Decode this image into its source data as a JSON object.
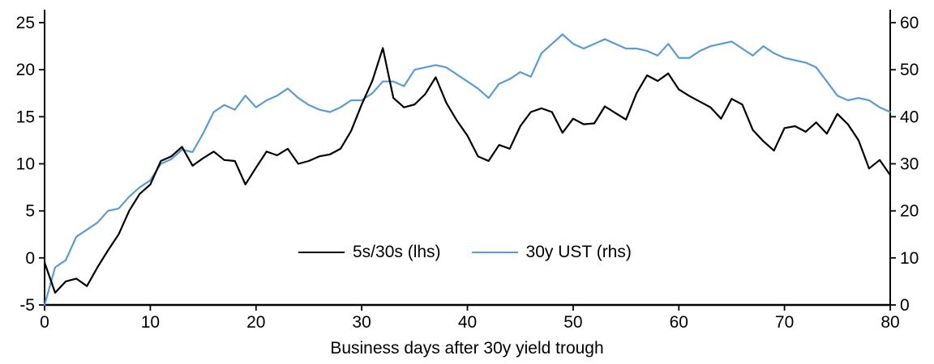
{
  "chart_data": {
    "type": "line",
    "xlabel": "Business days after 30y yield trough",
    "x_range": [
      0,
      80
    ],
    "x_ticks": [
      0,
      10,
      20,
      30,
      40,
      50,
      60,
      70,
      80
    ],
    "left_axis": {
      "min": -5,
      "max": 25,
      "ticks": [
        -5,
        0,
        5,
        10,
        15,
        20,
        25
      ]
    },
    "right_axis": {
      "min": 0,
      "max": 60,
      "ticks": [
        0,
        10,
        20,
        30,
        40,
        50,
        60
      ]
    },
    "grid": "off",
    "legend_position": "inside-bottom-center",
    "series": [
      {
        "name": "5s/30s (lhs)",
        "axis": "left",
        "color": "#000000",
        "x_step": 1,
        "values": [
          -0.5,
          -3.7,
          -2.5,
          -2.2,
          -3.0,
          -1.0,
          0.8,
          2.5,
          5.0,
          6.8,
          7.8,
          10.3,
          10.8,
          11.8,
          9.8,
          10.6,
          11.3,
          10.4,
          10.3,
          7.8,
          9.6,
          11.3,
          10.9,
          11.6,
          10.0,
          10.3,
          10.8,
          11.0,
          11.6,
          13.5,
          16.3,
          18.8,
          22.3,
          17.0,
          16.0,
          16.3,
          17.4,
          19.2,
          16.5,
          14.6,
          13.0,
          10.8,
          10.3,
          12.0,
          11.6,
          14.0,
          15.5,
          15.9,
          15.5,
          13.3,
          14.8,
          14.2,
          14.3,
          16.1,
          15.4,
          14.7,
          17.5,
          19.4,
          18.8,
          19.6,
          17.9,
          17.2,
          16.6,
          16.0,
          14.8,
          16.9,
          16.3,
          13.6,
          12.4,
          11.4,
          13.8,
          14.0,
          13.4,
          14.4,
          13.2,
          15.3,
          14.2,
          12.5,
          9.5,
          10.4,
          8.8
        ]
      },
      {
        "name": "30y UST (rhs)",
        "axis": "right",
        "color": "#5B9BD5",
        "x_step": 1,
        "values": [
          0,
          8,
          9.5,
          14.5,
          16,
          17.5,
          20,
          20.5,
          23,
          25,
          26.5,
          30,
          31,
          33,
          32.5,
          36.5,
          41,
          42.5,
          41.5,
          44.5,
          42,
          43.5,
          44.5,
          46,
          44,
          42.5,
          41.5,
          41,
          42,
          43.5,
          43.5,
          45,
          47.5,
          47.5,
          46.5,
          50,
          50.5,
          51,
          50.5,
          49,
          47.5,
          46,
          44,
          47,
          48,
          49.5,
          48.5,
          53.5,
          55.5,
          57.5,
          55.5,
          54.5,
          55.5,
          56.5,
          55.5,
          54.5,
          54.5,
          54,
          53,
          55.5,
          52.5,
          52.5,
          54,
          55,
          55.5,
          56,
          54.5,
          53,
          55,
          53.5,
          52.5,
          52,
          51.5,
          50.5,
          47.5,
          44.5,
          43.5,
          44,
          43.5,
          42,
          41
        ]
      }
    ]
  }
}
